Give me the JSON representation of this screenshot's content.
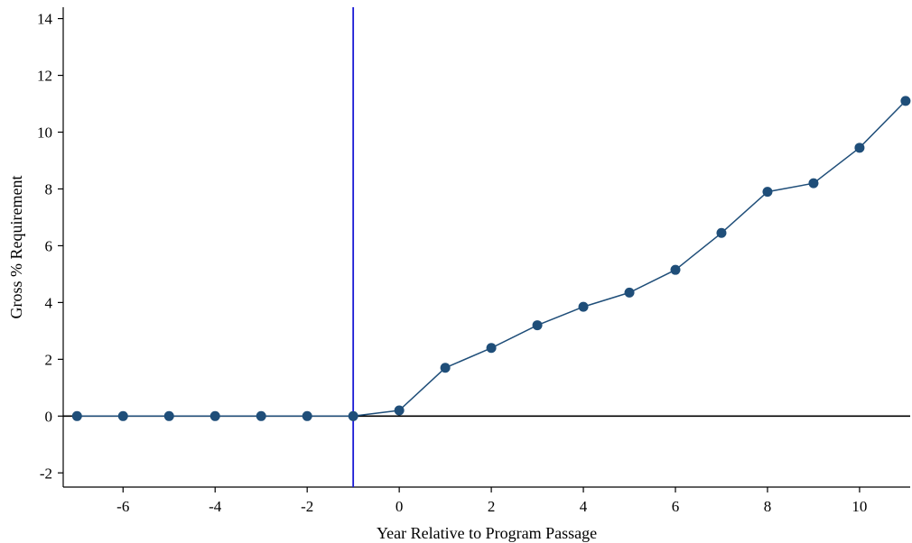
{
  "chart_data": {
    "type": "line",
    "title": "",
    "xlabel": "Year Relative to Program Passage",
    "ylabel": "Gross % Requirement",
    "xlim": [
      -7.3,
      11.1
    ],
    "ylim": [
      -2.5,
      14.4
    ],
    "xticks": [
      -6,
      -4,
      -2,
      0,
      2,
      4,
      6,
      8,
      10
    ],
    "yticks": [
      -2,
      0,
      2,
      4,
      6,
      8,
      10,
      12,
      14
    ],
    "grid": false,
    "legend": "none",
    "reference_lines": {
      "vertical_x": -1,
      "horizontal_y": 0
    },
    "colors": {
      "series": "#1f4e79",
      "vertical_line": "#1a1ad6",
      "horizontal_line": "#000000"
    },
    "series": [
      {
        "x": [
          -7,
          -6,
          -5,
          -4,
          -3,
          -2,
          -1,
          0,
          1,
          2,
          3,
          4,
          5,
          6,
          7,
          8,
          9,
          10,
          11
        ],
        "values": [
          0,
          0,
          0,
          0,
          0,
          0,
          0,
          0.2,
          1.7,
          2.4,
          3.2,
          3.85,
          4.35,
          5.15,
          6.45,
          7.9,
          8.2,
          9.45,
          11.1
        ]
      }
    ]
  }
}
